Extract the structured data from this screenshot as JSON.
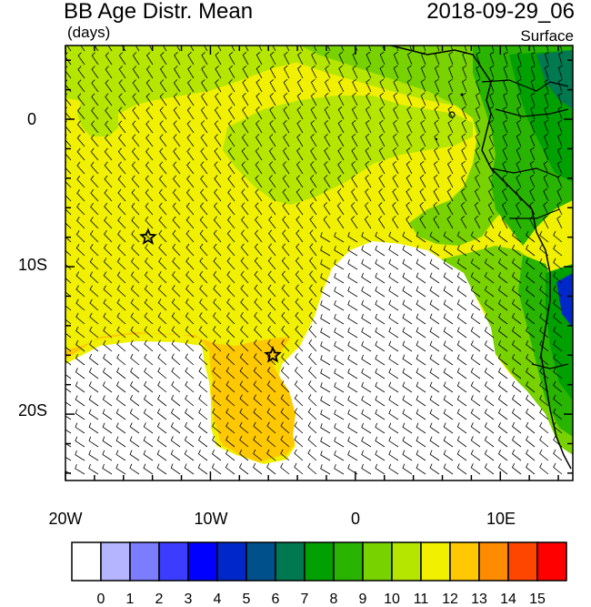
{
  "header": {
    "title": "BB Age Distr. Mean",
    "units": "(days)",
    "datetime": "2018-09-29_06",
    "level": "Surface"
  },
  "map": {
    "lon_labels": [
      "20W",
      "10W",
      "0",
      "10E"
    ],
    "lat_labels": [
      "0",
      "10S",
      "20S"
    ],
    "lon_range": [
      -20,
      15
    ],
    "lat_range": [
      -24.5,
      5
    ],
    "markers": [
      {
        "name": "star-marker",
        "lon": -14.3,
        "lat": -8.0
      },
      {
        "name": "star-marker",
        "lon": -5.7,
        "lat": -16.0
      }
    ]
  },
  "colorbar": {
    "labels": [
      "0",
      "1",
      "2",
      "3",
      "4",
      "5",
      "6",
      "7",
      "8",
      "9",
      "10",
      "11",
      "12",
      "13",
      "14",
      "15"
    ],
    "colors": [
      "#ffffff",
      "#b4b4ff",
      "#7c7cff",
      "#3c3cff",
      "#0000ff",
      "#0028c8",
      "#00508c",
      "#007850",
      "#00a000",
      "#28b400",
      "#78d200",
      "#b4e600",
      "#f0f000",
      "#ffc800",
      "#ff8c00",
      "#ff4600",
      "#ff0000"
    ]
  }
}
